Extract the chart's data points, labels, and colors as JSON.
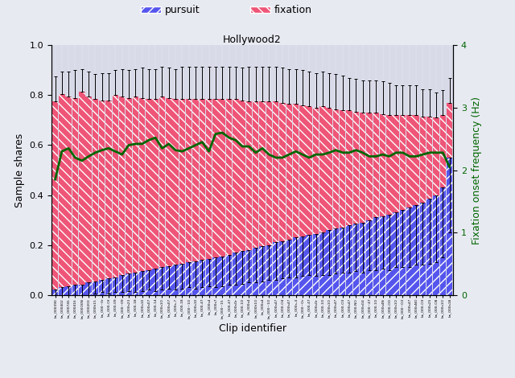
{
  "title": "Hollywood2",
  "xlabel": "Clip identifier",
  "ylabel_left": "Sample shares",
  "ylabel_right": "Fixation onset frequency (Hz)",
  "ylim_left": [
    0.0,
    1.0
  ],
  "ylim_right": [
    0.0,
    4.0
  ],
  "pursuit_color": "#5555ee",
  "fixation_color": "#ee5577",
  "green_line_color": "#006600",
  "plot_bg_color": "#d8dae8",
  "fig_bg_color": "#e8eaf2",
  "n_bars": 60,
  "pursuit_values": [
    0.02,
    0.03,
    0.035,
    0.04,
    0.04,
    0.05,
    0.055,
    0.06,
    0.065,
    0.07,
    0.08,
    0.085,
    0.09,
    0.095,
    0.1,
    0.105,
    0.11,
    0.115,
    0.12,
    0.125,
    0.13,
    0.135,
    0.14,
    0.145,
    0.15,
    0.155,
    0.16,
    0.17,
    0.175,
    0.18,
    0.19,
    0.195,
    0.2,
    0.21,
    0.215,
    0.22,
    0.23,
    0.235,
    0.24,
    0.245,
    0.25,
    0.26,
    0.265,
    0.27,
    0.28,
    0.285,
    0.29,
    0.3,
    0.31,
    0.315,
    0.32,
    0.33,
    0.34,
    0.35,
    0.36,
    0.37,
    0.385,
    0.4,
    0.43,
    0.55
  ],
  "fixation_values": [
    0.755,
    0.775,
    0.76,
    0.75,
    0.775,
    0.745,
    0.73,
    0.72,
    0.715,
    0.73,
    0.715,
    0.705,
    0.705,
    0.695,
    0.685,
    0.68,
    0.685,
    0.675,
    0.665,
    0.66,
    0.655,
    0.65,
    0.645,
    0.64,
    0.635,
    0.63,
    0.625,
    0.615,
    0.605,
    0.595,
    0.585,
    0.58,
    0.575,
    0.565,
    0.555,
    0.545,
    0.535,
    0.525,
    0.515,
    0.505,
    0.505,
    0.49,
    0.48,
    0.47,
    0.46,
    0.45,
    0.44,
    0.43,
    0.42,
    0.41,
    0.4,
    0.39,
    0.38,
    0.37,
    0.36,
    0.345,
    0.33,
    0.31,
    0.29,
    0.22
  ],
  "total_err": [
    0.1,
    0.09,
    0.1,
    0.11,
    0.09,
    0.1,
    0.1,
    0.11,
    0.11,
    0.1,
    0.11,
    0.11,
    0.11,
    0.12,
    0.12,
    0.12,
    0.12,
    0.12,
    0.12,
    0.13,
    0.13,
    0.13,
    0.13,
    0.13,
    0.13,
    0.13,
    0.13,
    0.13,
    0.13,
    0.14,
    0.14,
    0.14,
    0.14,
    0.14,
    0.14,
    0.14,
    0.14,
    0.14,
    0.14,
    0.14,
    0.14,
    0.14,
    0.14,
    0.14,
    0.13,
    0.13,
    0.13,
    0.13,
    0.13,
    0.13,
    0.13,
    0.12,
    0.12,
    0.12,
    0.12,
    0.11,
    0.11,
    0.1,
    0.1,
    0.1
  ],
  "pursuit_err": [
    0.03,
    0.04,
    0.04,
    0.04,
    0.04,
    0.05,
    0.05,
    0.05,
    0.06,
    0.06,
    0.07,
    0.07,
    0.08,
    0.08,
    0.08,
    0.09,
    0.09,
    0.09,
    0.1,
    0.1,
    0.1,
    0.11,
    0.11,
    0.11,
    0.12,
    0.12,
    0.12,
    0.13,
    0.13,
    0.13,
    0.14,
    0.14,
    0.14,
    0.15,
    0.15,
    0.15,
    0.16,
    0.16,
    0.16,
    0.17,
    0.17,
    0.18,
    0.18,
    0.18,
    0.19,
    0.19,
    0.2,
    0.2,
    0.21,
    0.21,
    0.22,
    0.22,
    0.23,
    0.24,
    0.24,
    0.25,
    0.26,
    0.27,
    0.28,
    0.3
  ],
  "green_line_hz": [
    1.85,
    2.3,
    2.35,
    2.2,
    2.15,
    2.22,
    2.28,
    2.32,
    2.35,
    2.3,
    2.25,
    2.4,
    2.42,
    2.42,
    2.48,
    2.52,
    2.35,
    2.42,
    2.32,
    2.3,
    2.35,
    2.4,
    2.45,
    2.3,
    2.58,
    2.6,
    2.52,
    2.48,
    2.38,
    2.38,
    2.28,
    2.35,
    2.25,
    2.2,
    2.2,
    2.25,
    2.3,
    2.25,
    2.2,
    2.25,
    2.25,
    2.28,
    2.32,
    2.28,
    2.28,
    2.32,
    2.28,
    2.22,
    2.22,
    2.25,
    2.22,
    2.28,
    2.28,
    2.22,
    2.22,
    2.25,
    2.28,
    2.28,
    2.28,
    2.05
  ],
  "tick_labels": [
    "bs_000390",
    "bs_000402",
    "bs_000745",
    "bs_000416",
    "bs_000O0N",
    "bs_000203",
    "bs_000h15",
    "bs_000~0r",
    "bs_000-Of",
    "bs_000-09",
    "bs_000~09",
    "bs_000s23",
    "bs_000-18",
    "bs_000s10",
    "bs_000s07",
    "bs_000-14",
    "bs_000s1O",
    "bs_000s07",
    "bs_000s-7",
    "bs_000-18",
    "bs_000~1O",
    "bs_000s10",
    "bs_000-47",
    "bs_000s4",
    "bs_000s7",
    "bs_000~15",
    "bs_000-47",
    "bs_000sOr",
    "bs_000-1O",
    "bs_000s4",
    "bs_000h1O",
    "bs_000s4",
    "bs_000~1O",
    "bs_000s47",
    "bs_000-O4",
    "bs_000s47",
    "bs_000s-4",
    "bs_000~Or",
    "bs_000-47",
    "bs_000sOr",
    "bs_000-1O",
    "bs_000s1O",
    "bs_000s47",
    "bs_000-O3",
    "bs_000s47",
    "bs_000-NO",
    "bs_000sO4",
    "bs_000~47",
    "bs_000-1O",
    "bs_000s4N",
    "bs_000-OO",
    "bs_000s1O",
    "bs_000~O3",
    "bs_000s47",
    "bs_000sNO",
    "bs_000-O3",
    "bs_000s25",
    "bs_000-O8",
    "bs_000s1O",
    "bs_000s18"
  ]
}
